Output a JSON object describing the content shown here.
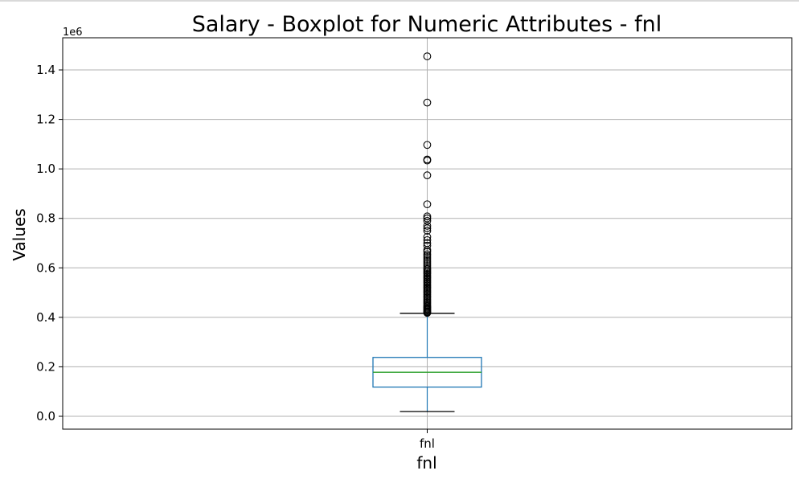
{
  "chart_data": {
    "type": "boxplot",
    "title": "Salary - Boxplot for Numeric Attributes - fnl",
    "xlabel": "fnl",
    "ylabel": "Values",
    "y_offset_text": "1e6",
    "categories": [
      "fnl"
    ],
    "ylim": [
      -52000,
      1530000
    ],
    "y_ticks": [
      0,
      200000,
      400000,
      600000,
      800000,
      1000000,
      1200000,
      1400000
    ],
    "y_tick_labels": [
      "0.0",
      "0.2",
      "0.4",
      "0.6",
      "0.8",
      "1.0",
      "1.2",
      "1.4"
    ],
    "grid": true,
    "box": {
      "whisker_low": 19000,
      "q1": 118000,
      "median": 178000,
      "q3": 238000,
      "whisker_high": 416000
    },
    "outliers": [
      1455000,
      1268000,
      1097000,
      1038000,
      1034000,
      974000,
      857000,
      808000,
      800000,
      790000,
      770000,
      760000,
      750000,
      725000,
      712000,
      700000,
      690000,
      672000,
      665000,
      655000,
      648000,
      640000,
      632000,
      624000,
      616000,
      608000,
      600000,
      594000,
      588000,
      582000,
      576000,
      570000,
      564000,
      558000,
      552000,
      546000,
      540000,
      534000,
      528000,
      522000,
      516000,
      510000,
      504000,
      498000,
      492000,
      486000,
      480000,
      474000,
      468000,
      462000,
      456000,
      450000,
      445000,
      440000,
      436000,
      432000,
      428000,
      424000,
      421000,
      418000
    ],
    "colors": {
      "box": "#1f77b4",
      "median": "#2ca02c",
      "caps": "#000000",
      "outlier": "#000000",
      "grid": "#b0b0b0"
    }
  }
}
